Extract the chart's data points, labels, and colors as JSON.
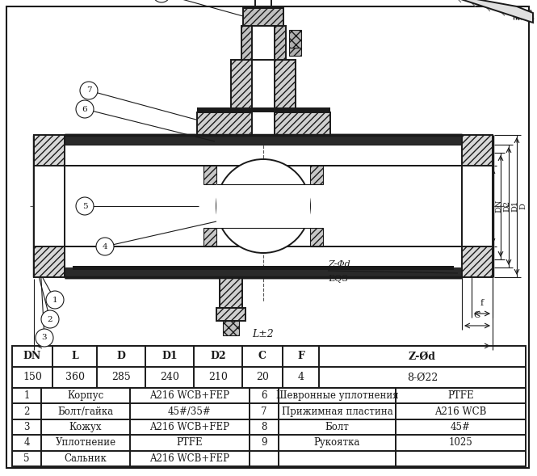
{
  "bg_color": "#ffffff",
  "line_color": "#1a1a1a",
  "dim_header": [
    "DN",
    "L",
    "D",
    "D1",
    "D2",
    "C",
    "F",
    "Z-Ød"
  ],
  "dim_values": [
    "150",
    "360",
    "285",
    "240",
    "210",
    "20",
    "4",
    "8-Ø22"
  ],
  "parts_left": [
    [
      "1",
      "Корпус",
      "A216 WCB+FEP"
    ],
    [
      "2",
      "Болт/гайка",
      "45#/35#"
    ],
    [
      "3",
      "Кожух",
      "A216 WCB+FEP"
    ],
    [
      "4",
      "Уплотнение",
      "PTFE"
    ],
    [
      "5",
      "Сальник",
      "A216 WCB+FEP"
    ]
  ],
  "parts_right": [
    [
      "6",
      "Шевронные уплотнения",
      "PTFE"
    ],
    [
      "7",
      "Прижимная пластина",
      "A216 WCB"
    ],
    [
      "8",
      "Болт",
      "45#"
    ],
    [
      "9",
      "Рукоятка",
      "1025"
    ]
  ]
}
